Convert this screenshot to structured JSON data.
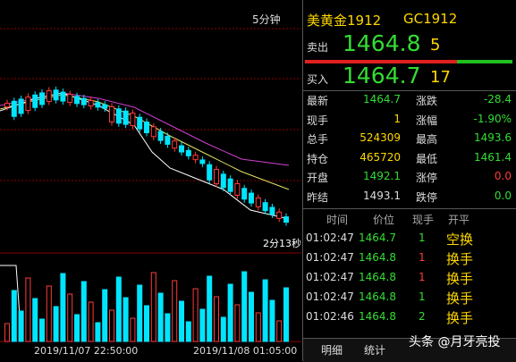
{
  "chart_header": {
    "period": "5分钟"
  },
  "chart_axis": {
    "start_time": "2019/11/07 22:50:00",
    "end_time": "2019/11/08 01:05:00",
    "countdown": "2分13秒"
  },
  "quote": {
    "name": "美黄金1912",
    "code": "GC1912",
    "sell": {
      "label": "卖出",
      "price": "1464.8",
      "volume": "5"
    },
    "buy": {
      "label": "买入",
      "price": "1464.7",
      "volume": "17"
    },
    "stats": [
      [
        "最新",
        "1464.7",
        "涨跌",
        "-28.4"
      ],
      [
        "现手",
        "1",
        "涨幅",
        "-1.90%"
      ],
      [
        "总手",
        "524309",
        "最高",
        "1493.6"
      ],
      [
        "持仓",
        "465720",
        "最低",
        "1461.4"
      ],
      [
        "开盘",
        "1492.1",
        "涨停",
        "0.0"
      ],
      [
        "昨结",
        "1493.1",
        "跌停",
        "0.0"
      ]
    ]
  },
  "trades": {
    "header": [
      "时间",
      "价位",
      "现手",
      "开平"
    ],
    "rows": [
      [
        "01:02:47",
        "1464.7",
        "1",
        "空换"
      ],
      [
        "01:02:47",
        "1464.8",
        "1",
        "换手"
      ],
      [
        "01:02:47",
        "1464.8",
        "1",
        "换手"
      ],
      [
        "01:02:47",
        "1464.8",
        "1",
        "换手"
      ],
      [
        "01:02:46",
        "1464.8",
        "2",
        "换手"
      ]
    ]
  },
  "tabs": [
    "明细",
    "统计"
  ],
  "watermark": "头条 @月牙亮投"
}
